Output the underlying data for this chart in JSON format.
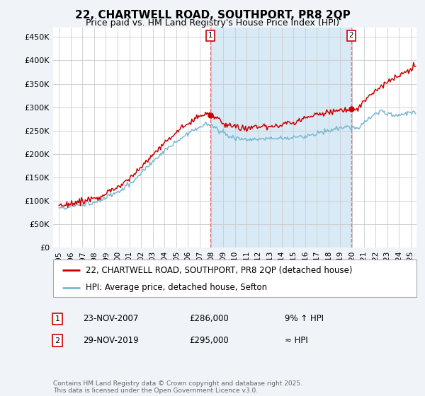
{
  "title": "22, CHARTWELL ROAD, SOUTHPORT, PR8 2QP",
  "subtitle": "Price paid vs. HM Land Registry's House Price Index (HPI)",
  "ylabel_ticks": [
    "£0",
    "£50K",
    "£100K",
    "£150K",
    "£200K",
    "£250K",
    "£300K",
    "£350K",
    "£400K",
    "£450K"
  ],
  "ytick_values": [
    0,
    50000,
    100000,
    150000,
    200000,
    250000,
    300000,
    350000,
    400000,
    450000
  ],
  "ylim": [
    0,
    470000
  ],
  "xlim_start": 1994.5,
  "xlim_end": 2025.5,
  "line1_color": "#cc0000",
  "line2_color": "#7ab8d4",
  "line1_label": "22, CHARTWELL ROAD, SOUTHPORT, PR8 2QP (detached house)",
  "line2_label": "HPI: Average price, detached house, Sefton",
  "marker1_x": 2007.9,
  "marker1_y": 286000,
  "marker1_label": "1",
  "marker2_x": 2019.92,
  "marker2_y": 295000,
  "marker2_label": "2",
  "shade_color": "#d8eaf5",
  "annotation1_date": "23-NOV-2007",
  "annotation1_price": "£286,000",
  "annotation1_hpi": "9% ↑ HPI",
  "annotation2_date": "29-NOV-2019",
  "annotation2_price": "£295,000",
  "annotation2_hpi": "≈ HPI",
  "footer": "Contains HM Land Registry data © Crown copyright and database right 2025.\nThis data is licensed under the Open Government Licence v3.0.",
  "background_color": "#f0f4f8",
  "plot_bg_color": "#ffffff",
  "grid_color": "#cccccc",
  "vline_color": "#e87070",
  "title_fontsize": 11,
  "subtitle_fontsize": 9
}
